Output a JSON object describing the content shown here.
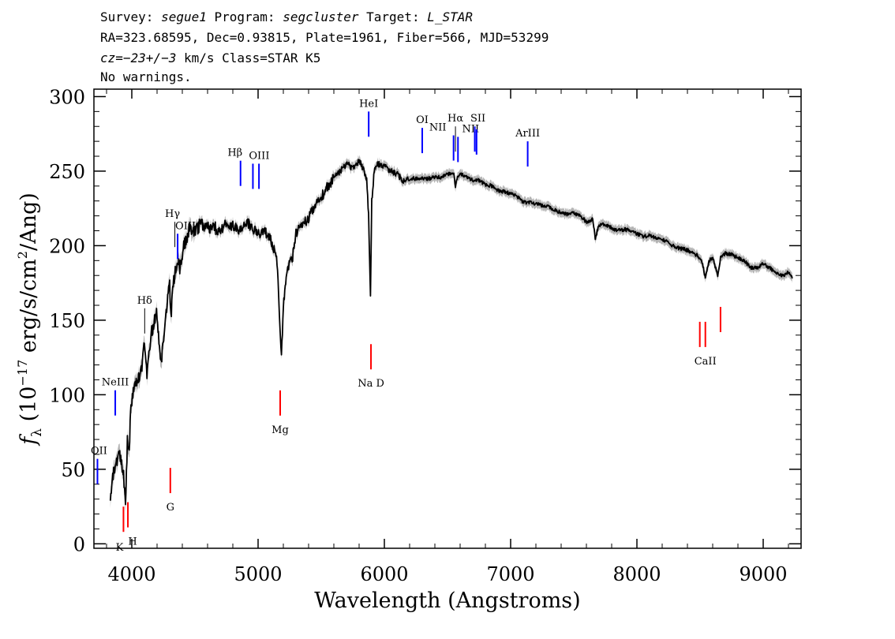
{
  "header": {
    "line1": {
      "survey_label": "Survey: ",
      "survey": "segue1",
      "program_label": " Program: ",
      "program": "segcluster",
      "target_label": " Target: ",
      "target": "L_STAR"
    },
    "line2": "RA=323.68595, Dec=0.93815, Plate=1961, Fiber=566, MJD=53299",
    "line3": {
      "cz_label": "cz",
      "cz_value": "=−23+/−3",
      "rest": " km/s Class=STAR K5"
    },
    "line4": "No warnings."
  },
  "colors": {
    "spectrum": "#000000",
    "error_band": "#b4b4b4",
    "emission_line": "#0000ff",
    "absorption_line": "#ff0000",
    "hydrogen_line": "#000000"
  },
  "chart_data": {
    "type": "line",
    "xlabel": "Wavelength (Angstroms)",
    "ylabel": {
      "symbol": "f",
      "subscript": "λ",
      "text_a": " (10",
      "exp1": "−17",
      "text_b": " erg/s/cm",
      "exp2": "2",
      "text_c": "/Ang)"
    },
    "xlim": [
      3700,
      9300
    ],
    "ylim": [
      -3,
      305
    ],
    "x_ticks": [
      4000,
      5000,
      6000,
      7000,
      8000,
      9000
    ],
    "x_tick_labels": [
      "4000",
      "5000",
      "6000",
      "7000",
      "8000",
      "9000"
    ],
    "y_ticks": [
      0,
      50,
      100,
      150,
      200,
      250,
      300
    ],
    "y_tick_labels": [
      "0",
      "50",
      "100",
      "150",
      "200",
      "250",
      "300"
    ],
    "grid": false,
    "series": [
      {
        "x": [
          3830,
          3860,
          3880,
          3900,
          3920,
          3935,
          3950,
          3965,
          3980,
          3990,
          4000,
          4020,
          4050,
          4080,
          4100,
          4120,
          4150,
          4180,
          4200,
          4230,
          4260,
          4280,
          4300,
          4310,
          4320,
          4340,
          4360,
          4380,
          4400,
          4430,
          4460,
          4500,
          4550,
          4600,
          4650,
          4700,
          4750,
          4800,
          4850,
          4900,
          4950,
          5000,
          5050,
          5100,
          5150,
          5170,
          5185,
          5200,
          5230,
          5270,
          5300,
          5350,
          5400,
          5450,
          5500,
          5550,
          5600,
          5650,
          5700,
          5750,
          5800,
          5830,
          5860,
          5875,
          5890,
          5900,
          5920,
          5950,
          6000,
          6050,
          6100,
          6150,
          6200,
          6250,
          6300,
          6350,
          6400,
          6450,
          6500,
          6550,
          6563,
          6580,
          6600,
          6650,
          6700,
          6750,
          6800,
          6850,
          6900,
          6950,
          7000,
          7050,
          7100,
          7150,
          7200,
          7250,
          7300,
          7350,
          7400,
          7450,
          7500,
          7550,
          7600,
          7650,
          7670,
          7700,
          7750,
          7800,
          7850,
          7900,
          7950,
          8000,
          8050,
          8100,
          8150,
          8200,
          8250,
          8300,
          8350,
          8400,
          8450,
          8498,
          8520,
          8542,
          8570,
          8600,
          8640,
          8662,
          8700,
          8750,
          8800,
          8850,
          8900,
          8950,
          9000,
          9050,
          9100,
          9150,
          9200,
          9230
        ],
        "y": [
          32,
          50,
          55,
          60,
          52,
          45,
          25,
          70,
          60,
          90,
          95,
          105,
          110,
          120,
          135,
          112,
          140,
          150,
          155,
          120,
          145,
          160,
          175,
          150,
          170,
          180,
          190,
          185,
          195,
          205,
          212,
          210,
          215,
          213,
          212,
          210,
          215,
          213,
          210,
          217,
          212,
          208,
          210,
          205,
          190,
          150,
          125,
          160,
          185,
          190,
          208,
          215,
          218,
          228,
          232,
          240,
          245,
          250,
          255,
          252,
          257,
          252,
          245,
          220,
          165,
          230,
          250,
          255,
          253,
          250,
          248,
          243,
          245,
          245,
          245,
          245,
          246,
          246,
          248,
          248,
          240,
          246,
          248,
          246,
          244,
          244,
          241,
          240,
          237,
          236,
          235,
          233,
          229,
          229,
          228,
          227,
          226,
          224,
          222,
          221,
          222,
          220,
          216,
          218,
          205,
          214,
          214,
          212,
          210,
          211,
          210,
          208,
          206,
          207,
          205,
          204,
          202,
          199,
          198,
          197,
          195,
          192,
          188,
          178,
          190,
          192,
          180,
          192,
          195,
          194,
          192,
          190,
          185,
          185,
          188,
          185,
          182,
          180,
          182,
          178
        ]
      }
    ],
    "annotations": [
      {
        "label": "OII",
        "x": 3728,
        "y": 57,
        "color": "emission_line"
      },
      {
        "label": "NeIII",
        "x": 3869,
        "y": 103,
        "color": "emission_line"
      },
      {
        "label": "K",
        "x": 3934,
        "y": 8,
        "color": "absorption_line"
      },
      {
        "label": "H",
        "x": 3969,
        "y": 11,
        "color": "absorption_line"
      },
      {
        "label": "Hδ",
        "x": 4102,
        "y": 158,
        "color": "hydrogen_line"
      },
      {
        "label": "G",
        "x": 4305,
        "y": 34,
        "color": "absorption_line"
      },
      {
        "label": "Hγ",
        "x": 4341,
        "y": 216,
        "color": "hydrogen_line"
      },
      {
        "label": "OIII",
        "x": 4363,
        "y": 208,
        "color": "emission_line"
      },
      {
        "label": "Hβ",
        "x": 4861,
        "y": 257,
        "color": "emission_line"
      },
      {
        "label": "OIII",
        "x": 4959,
        "y": 255,
        "color": "emission_line"
      },
      {
        "label": "OIII",
        "x": 5007,
        "y": 255,
        "color": "emission_line"
      },
      {
        "label": "Mg",
        "x": 5175,
        "y": 86,
        "color": "absorption_line"
      },
      {
        "label": "HeI",
        "x": 5876,
        "y": 290,
        "color": "emission_line"
      },
      {
        "label": "Na D",
        "x": 5894,
        "y": 117,
        "color": "absorption_line"
      },
      {
        "label": "OI",
        "x": 6300,
        "y": 279,
        "color": "emission_line"
      },
      {
        "label": "NII",
        "x": 6548,
        "y": 274,
        "color": "emission_line"
      },
      {
        "label": "Hα",
        "x": 6563,
        "y": 280,
        "color": "hydrogen_line"
      },
      {
        "label": "NII",
        "x": 6583,
        "y": 273,
        "color": "emission_line"
      },
      {
        "label": "SII",
        "x": 6716,
        "y": 280,
        "color": "emission_line"
      },
      {
        "label": "SII",
        "x": 6730,
        "y": 278,
        "color": "emission_line"
      },
      {
        "label": "ArIII",
        "x": 7135,
        "y": 270,
        "color": "emission_line"
      },
      {
        "label": "CaII",
        "x": 8498,
        "y": 132,
        "color": "absorption_line"
      },
      {
        "label": "CaII",
        "x": 8542,
        "y": 132,
        "color": "absorption_line"
      },
      {
        "label": "CaII",
        "x": 8662,
        "y": 142,
        "color": "absorption_line"
      }
    ]
  }
}
